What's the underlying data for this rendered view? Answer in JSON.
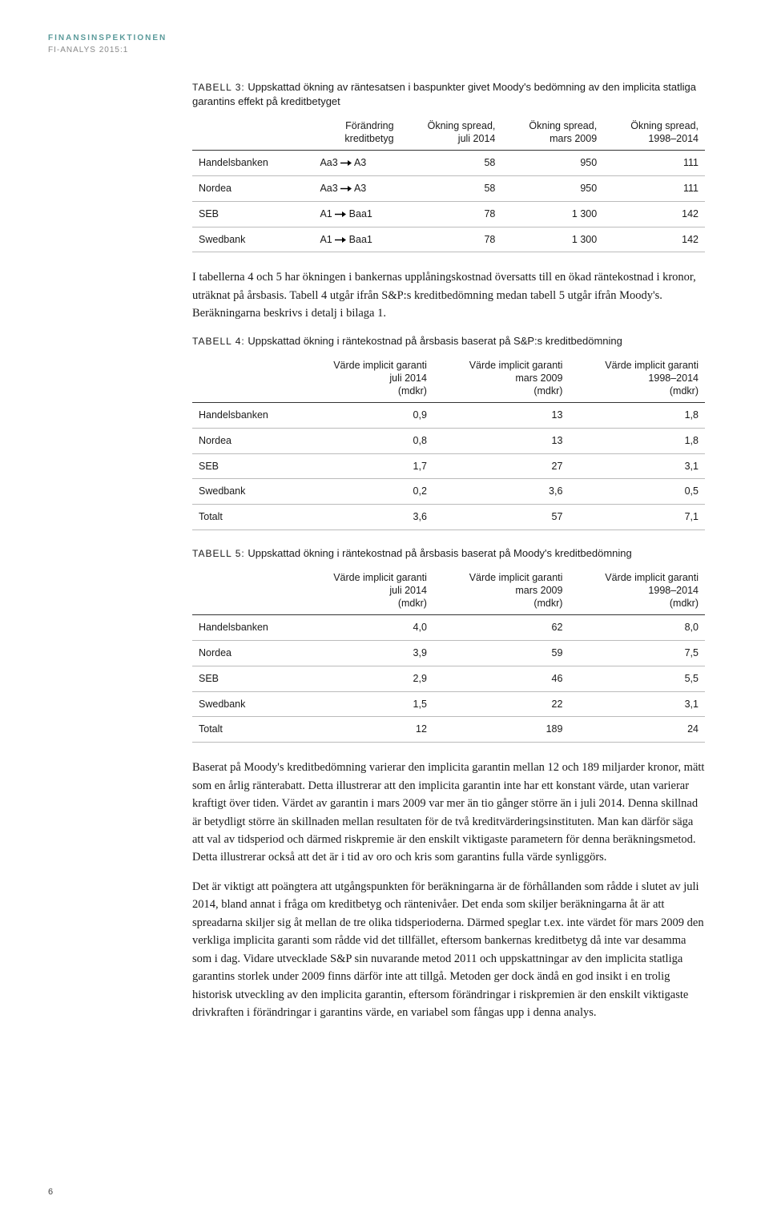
{
  "header": {
    "org": "FINANSINSPEKTIONEN",
    "sub": "FI-ANALYS 2015:1"
  },
  "table3": {
    "title_prefix": "TABELL 3:",
    "title": "Uppskattad ökning av räntesatsen i baspunkter givet Moody's bedömning av den implicita statliga garantins effekt på kreditbetyget",
    "columns": [
      "",
      "Förändring kreditbetyg",
      "Ökning spread, juli 2014",
      "Ökning spread, mars 2009",
      "Ökning spread, 1998–2014"
    ],
    "rows": [
      {
        "bank": "Handelsbanken",
        "from": "Aa3",
        "to": "A3",
        "c1": "58",
        "c2": "950",
        "c3": "111"
      },
      {
        "bank": "Nordea",
        "from": "Aa3",
        "to": "A3",
        "c1": "58",
        "c2": "950",
        "c3": "111"
      },
      {
        "bank": "SEB",
        "from": "A1",
        "to": "Baa1",
        "c1": "78",
        "c2": "1 300",
        "c3": "142"
      },
      {
        "bank": "Swedbank",
        "from": "A1",
        "to": "Baa1",
        "c1": "78",
        "c2": "1 300",
        "c3": "142"
      }
    ]
  },
  "para1": "I tabellerna 4 och 5 har ökningen i bankernas upplåningskostnad översatts till en ökad räntekostnad i kronor, uträknat på årsbasis. Tabell 4 utgår ifrån S&P:s kreditbedömning medan tabell 5 utgår ifrån Moody's. Beräkningarna beskrivs i detalj i bilaga 1.",
  "table4": {
    "title_prefix": "TABELL 4:",
    "title": "Uppskattad ökning i räntekostnad på årsbasis baserat på S&P:s kreditbedömning",
    "columns": [
      "",
      "Värde implicit garanti juli 2014 (mdkr)",
      "Värde implicit garanti mars 2009 (mdkr)",
      "Värde implicit garanti 1998–2014 (mdkr)"
    ],
    "rows": [
      {
        "bank": "Handelsbanken",
        "c1": "0,9",
        "c2": "13",
        "c3": "1,8"
      },
      {
        "bank": "Nordea",
        "c1": "0,8",
        "c2": "13",
        "c3": "1,8"
      },
      {
        "bank": "SEB",
        "c1": "1,7",
        "c2": "27",
        "c3": "3,1"
      },
      {
        "bank": "Swedbank",
        "c1": "0,2",
        "c2": "3,6",
        "c3": "0,5"
      },
      {
        "bank": "Totalt",
        "c1": "3,6",
        "c2": "57",
        "c3": "7,1"
      }
    ]
  },
  "table5": {
    "title_prefix": "TABELL 5:",
    "title": "Uppskattad ökning i räntekostnad på årsbasis baserat på Moody's kreditbedömning",
    "columns": [
      "",
      "Värde implicit garanti juli 2014 (mdkr)",
      "Värde implicit garanti mars 2009 (mdkr)",
      "Värde implicit garanti 1998–2014 (mdkr)"
    ],
    "rows": [
      {
        "bank": "Handelsbanken",
        "c1": "4,0",
        "c2": "62",
        "c3": "8,0"
      },
      {
        "bank": "Nordea",
        "c1": "3,9",
        "c2": "59",
        "c3": "7,5"
      },
      {
        "bank": "SEB",
        "c1": "2,9",
        "c2": "46",
        "c3": "5,5"
      },
      {
        "bank": "Swedbank",
        "c1": "1,5",
        "c2": "22",
        "c3": "3,1"
      },
      {
        "bank": "Totalt",
        "c1": "12",
        "c2": "189",
        "c3": "24"
      }
    ]
  },
  "para2": "Baserat på Moody's kreditbedömning varierar den implicita garantin mellan 12 och 189 miljarder kronor, mätt som en årlig ränterabatt. Detta illustrerar att den implicita garantin inte har ett konstant värde, utan varierar kraftigt över tiden. Värdet av garantin i mars 2009 var mer än tio gånger större än i juli 2014. Denna skillnad är betydligt större än skillnaden mellan resultaten för de två kreditvärderingsinstituten. Man kan därför säga att val av tidsperiod och därmed riskpremie är den enskilt viktigaste parametern för denna beräkningsmetod. Detta illustrerar också att det är i tid av oro och kris som garantins fulla värde synliggörs.",
  "para3": "Det är viktigt att poängtera att utgångspunkten för beräkningarna är de förhållanden som rådde i slutet av juli 2014, bland annat i fråga om kreditbetyg och räntenivåer. Det enda som skiljer beräkningarna åt är att spreadarna skiljer sig åt mellan de tre olika tidsperioderna. Därmed speglar t.ex. inte värdet för mars 2009 den verkliga implicita garanti som rådde vid det tillfället, eftersom bankernas kreditbetyg då inte var desamma som i dag. Vidare utvecklade S&P sin nuvarande metod 2011 och uppskattningar av den implicita statliga garantins storlek under 2009 finns därför inte att tillgå. Metoden ger dock ändå en god insikt i en trolig historisk utveckling av den implicita garantin, eftersom förändringar i riskpremien är den enskilt viktigaste drivkraften i förändringar i garantins värde, en variabel som fångas upp i denna analys.",
  "page": "6",
  "colors": {
    "accent": "#5a9a9a",
    "border_dark": "#333333",
    "border_light": "#bbbbbb",
    "text": "#1a1a1a"
  }
}
